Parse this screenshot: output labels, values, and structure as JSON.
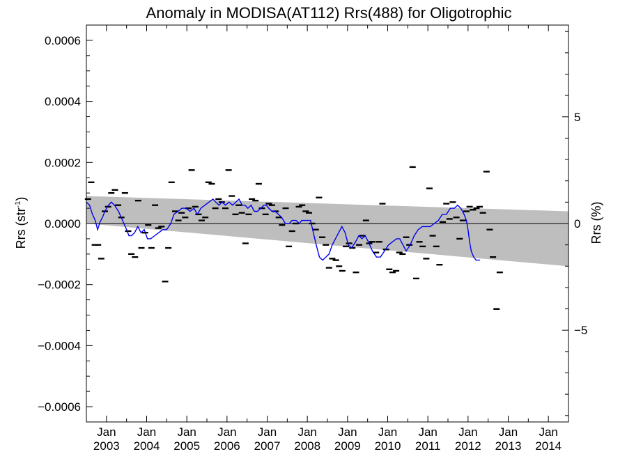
{
  "chart_data": {
    "type": "scatter",
    "title": "Anomaly in MODISA(AT112) Rrs(488) for Oligotrophic",
    "ylabel_left_main": "Rrs (str",
    "ylabel_left_sup": "-1",
    "ylabel_left_end": ")",
    "ylabel_right": "Rrs (%)",
    "xlim": [
      2002.5,
      2014.5
    ],
    "ylim": [
      -0.00065,
      0.00065
    ],
    "ylim_right": [
      -9.3,
      9.3
    ],
    "y_ticks": [
      {
        "value": 0.0006,
        "label": "0.0006"
      },
      {
        "value": 0.0004,
        "label": "0.0004"
      },
      {
        "value": 0.0002,
        "label": "0.0002"
      },
      {
        "value": 0.0,
        "label": "0.0000"
      },
      {
        "value": -0.0002,
        "label": "−0.0002"
      },
      {
        "value": -0.0004,
        "label": "−0.0004"
      },
      {
        "value": -0.0006,
        "label": "−0.0006"
      }
    ],
    "y_right_ticks": [
      {
        "value": 5,
        "label": "5"
      },
      {
        "value": 0,
        "label": "0"
      },
      {
        "value": -5,
        "label": "−5"
      }
    ],
    "x_ticks": [
      {
        "value": 2003.0,
        "month": "Jan",
        "year": "2003"
      },
      {
        "value": 2004.0,
        "month": "Jan",
        "year": "2004"
      },
      {
        "value": 2005.0,
        "month": "Jan",
        "year": "2005"
      },
      {
        "value": 2006.0,
        "month": "Jan",
        "year": "2006"
      },
      {
        "value": 2007.0,
        "month": "Jan",
        "year": "2007"
      },
      {
        "value": 2008.0,
        "month": "Jan",
        "year": "2008"
      },
      {
        "value": 2009.0,
        "month": "Jan",
        "year": "2009"
      },
      {
        "value": 2010.0,
        "month": "Jan",
        "year": "2010"
      },
      {
        "value": 2011.0,
        "month": "Jan",
        "year": "2011"
      },
      {
        "value": 2012.0,
        "month": "Jan",
        "year": "2012"
      },
      {
        "value": 2013.0,
        "month": "Jan",
        "year": "2013"
      },
      {
        "value": 2014.0,
        "month": "Jan",
        "year": "2014"
      }
    ],
    "band": {
      "color": "#bebebe",
      "upper": [
        [
          2002.5,
          9e-05
        ],
        [
          2014.5,
          4e-05
        ]
      ],
      "lower": [
        [
          2002.5,
          0.0
        ],
        [
          2014.5,
          -0.00014
        ]
      ]
    },
    "zero_line": 0,
    "series": [
      {
        "kind": "monthly",
        "color": "#000000",
        "points": [
          [
            2002.54,
            8e-05
          ],
          [
            2002.62,
            0.000135
          ],
          [
            2002.71,
            -7e-05
          ],
          [
            2002.79,
            -7e-05
          ],
          [
            2002.87,
            -0.000115
          ],
          [
            2002.96,
            4e-05
          ],
          [
            2003.04,
            5.5e-05
          ],
          [
            2003.12,
            0.0001
          ],
          [
            2003.21,
            0.00011
          ],
          [
            2003.29,
            6e-05
          ],
          [
            2003.37,
            2e-05
          ],
          [
            2003.46,
            0.0001
          ],
          [
            2003.54,
            -2.5e-05
          ],
          [
            2003.62,
            -0.0001
          ],
          [
            2003.71,
            -0.00011
          ],
          [
            2003.79,
            7.5e-05
          ],
          [
            2003.87,
            -8e-05
          ],
          [
            2003.96,
            -3e-05
          ],
          [
            2004.04,
            -5e-06
          ],
          [
            2004.12,
            -8e-05
          ],
          [
            2004.21,
            6e-05
          ],
          [
            2004.29,
            -1.5e-05
          ],
          [
            2004.37,
            -1e-05
          ],
          [
            2004.46,
            -0.00019
          ],
          [
            2004.54,
            -8e-05
          ],
          [
            2004.62,
            0.000135
          ],
          [
            2004.71,
            4e-05
          ],
          [
            2004.79,
            1e-05
          ],
          [
            2004.87,
            3.5e-05
          ],
          [
            2004.96,
            2e-05
          ],
          [
            2005.04,
            5e-05
          ],
          [
            2005.12,
            0.000175
          ],
          [
            2005.21,
            5.5e-05
          ],
          [
            2005.29,
            3e-05
          ],
          [
            2005.37,
            1e-05
          ],
          [
            2005.46,
            2e-05
          ],
          [
            2005.54,
            0.000135
          ],
          [
            2005.62,
            0.00013
          ],
          [
            2005.71,
            5e-05
          ],
          [
            2005.79,
            8e-05
          ],
          [
            2005.87,
            7e-05
          ],
          [
            2005.96,
            5e-05
          ],
          [
            2006.04,
            0.000175
          ],
          [
            2006.12,
            9e-05
          ],
          [
            2006.21,
            3e-05
          ],
          [
            2006.29,
            6e-05
          ],
          [
            2006.37,
            3.5e-05
          ],
          [
            2006.46,
            -6.5e-05
          ],
          [
            2006.54,
            3e-05
          ],
          [
            2006.62,
            8e-05
          ],
          [
            2006.71,
            7.5e-05
          ],
          [
            2006.79,
            0.00013
          ],
          [
            2006.87,
            5e-05
          ],
          [
            2006.96,
            3e-05
          ],
          [
            2007.04,
            6.5e-05
          ],
          [
            2007.12,
            6e-05
          ],
          [
            2007.21,
            4e-05
          ],
          [
            2007.29,
            2e-05
          ],
          [
            2007.37,
            -5e-06
          ],
          [
            2007.46,
            5e-05
          ],
          [
            2007.54,
            -7.5e-05
          ],
          [
            2007.62,
            -2.5e-05
          ],
          [
            2007.71,
            0.0
          ],
          [
            2007.79,
            5.5e-05
          ],
          [
            2007.87,
            6e-05
          ],
          [
            2007.96,
            4e-05
          ],
          [
            2008.04,
            3.5e-05
          ],
          [
            2008.12,
            0.0
          ],
          [
            2008.21,
            -2e-05
          ],
          [
            2008.29,
            8.5e-05
          ],
          [
            2008.37,
            -4.5e-05
          ],
          [
            2008.46,
            -7e-05
          ],
          [
            2008.54,
            -0.000145
          ],
          [
            2008.62,
            -0.000115
          ],
          [
            2008.71,
            -0.00012
          ],
          [
            2008.79,
            -0.00014
          ],
          [
            2008.87,
            -0.000155
          ],
          [
            2008.96,
            -7.5e-05
          ],
          [
            2009.04,
            -6.5e-05
          ],
          [
            2009.12,
            -8e-05
          ],
          [
            2009.21,
            -0.00016
          ],
          [
            2009.29,
            -7e-05
          ],
          [
            2009.37,
            -4e-05
          ],
          [
            2009.46,
            1e-05
          ],
          [
            2009.54,
            -6.5e-05
          ],
          [
            2009.62,
            -6e-05
          ],
          [
            2009.71,
            -9.5e-05
          ],
          [
            2009.79,
            -6e-05
          ],
          [
            2009.87,
            6.5e-05
          ],
          [
            2009.96,
            -8.5e-05
          ],
          [
            2010.04,
            -0.00015
          ],
          [
            2010.12,
            -0.00016
          ],
          [
            2010.21,
            -0.000155
          ],
          [
            2010.29,
            -9.5e-05
          ],
          [
            2010.37,
            -0.0001
          ],
          [
            2010.46,
            -4.5e-05
          ],
          [
            2010.54,
            -7e-05
          ],
          [
            2010.62,
            0.000185
          ],
          [
            2010.71,
            -0.00018
          ],
          [
            2010.79,
            -6e-05
          ],
          [
            2010.87,
            -7.5e-05
          ],
          [
            2010.96,
            -0.000115
          ],
          [
            2011.04,
            0.000115
          ],
          [
            2011.12,
            -4e-05
          ],
          [
            2011.21,
            -7.5e-05
          ],
          [
            2011.29,
            -0.000135
          ],
          [
            2011.37,
            5e-06
          ],
          [
            2011.46,
            6.5e-05
          ],
          [
            2011.54,
            1.5e-05
          ],
          [
            2011.62,
            7e-05
          ],
          [
            2011.71,
            2e-05
          ],
          [
            2011.79,
            -5e-05
          ],
          [
            2011.87,
            1e-05
          ],
          [
            2011.96,
            4e-05
          ],
          [
            2012.04,
            5.5e-05
          ],
          [
            2012.12,
            4.5e-05
          ],
          [
            2012.21,
            5e-05
          ],
          [
            2012.29,
            5.5e-05
          ],
          [
            2012.37,
            3.5e-05
          ],
          [
            2012.46,
            0.00017
          ],
          [
            2012.54,
            -2e-05
          ],
          [
            2012.62,
            -0.00011
          ],
          [
            2012.71,
            -0.00028
          ],
          [
            2012.79,
            -0.00016
          ]
        ]
      },
      {
        "kind": "running-mean",
        "color": "#0000ee",
        "points": [
          [
            2002.5,
            7e-05
          ],
          [
            2002.58,
            6e-05
          ],
          [
            2002.65,
            3e-05
          ],
          [
            2002.72,
            1e-05
          ],
          [
            2002.78,
            -2e-05
          ],
          [
            2002.84,
            5e-06
          ],
          [
            2002.9,
            2e-05
          ],
          [
            2002.96,
            4e-05
          ],
          [
            2003.05,
            6e-05
          ],
          [
            2003.12,
            7e-05
          ],
          [
            2003.2,
            6e-05
          ],
          [
            2003.3,
            4e-05
          ],
          [
            2003.4,
            1e-05
          ],
          [
            2003.5,
            -2e-05
          ],
          [
            2003.56,
            -4e-05
          ],
          [
            2003.62,
            -4e-05
          ],
          [
            2003.7,
            -3e-05
          ],
          [
            2003.78,
            -1e-05
          ],
          [
            2003.86,
            -3e-05
          ],
          [
            2003.94,
            -2e-05
          ],
          [
            2004.02,
            -5e-05
          ],
          [
            2004.1,
            -5e-05
          ],
          [
            2004.2,
            -4e-05
          ],
          [
            2004.3,
            -3e-05
          ],
          [
            2004.4,
            -2e-05
          ],
          [
            2004.5,
            -2e-05
          ],
          [
            2004.6,
            0.0
          ],
          [
            2004.68,
            3e-05
          ],
          [
            2004.78,
            4e-05
          ],
          [
            2004.88,
            5e-05
          ],
          [
            2004.98,
            5e-05
          ],
          [
            2005.08,
            4e-05
          ],
          [
            2005.18,
            5e-05
          ],
          [
            2005.26,
            3e-05
          ],
          [
            2005.35,
            5e-05
          ],
          [
            2005.45,
            6e-05
          ],
          [
            2005.55,
            7e-05
          ],
          [
            2005.65,
            8e-05
          ],
          [
            2005.72,
            7e-05
          ],
          [
            2005.8,
            6e-05
          ],
          [
            2005.88,
            7e-05
          ],
          [
            2005.96,
            6e-05
          ],
          [
            2006.05,
            7e-05
          ],
          [
            2006.14,
            6e-05
          ],
          [
            2006.22,
            7e-05
          ],
          [
            2006.3,
            8e-05
          ],
          [
            2006.38,
            6e-05
          ],
          [
            2006.45,
            6e-05
          ],
          [
            2006.52,
            5e-05
          ],
          [
            2006.6,
            6e-05
          ],
          [
            2006.68,
            4e-05
          ],
          [
            2006.76,
            4e-05
          ],
          [
            2006.84,
            5e-05
          ],
          [
            2006.92,
            6e-05
          ],
          [
            2006.98,
            6e-05
          ],
          [
            2007.04,
            5e-05
          ],
          [
            2007.12,
            4e-05
          ],
          [
            2007.2,
            4e-05
          ],
          [
            2007.28,
            3e-05
          ],
          [
            2007.36,
            2e-05
          ],
          [
            2007.45,
            0.0
          ],
          [
            2007.55,
            0.0
          ],
          [
            2007.62,
            1e-05
          ],
          [
            2007.72,
            1e-05
          ],
          [
            2007.8,
            0.0
          ],
          [
            2007.86,
            1e-05
          ],
          [
            2007.92,
            1e-05
          ],
          [
            2008.0,
            1e-05
          ],
          [
            2008.08,
            1e-05
          ],
          [
            2008.15,
            -3e-05
          ],
          [
            2008.22,
            -7e-05
          ],
          [
            2008.3,
            -0.00011
          ],
          [
            2008.38,
            -0.00012
          ],
          [
            2008.46,
            -0.00011
          ],
          [
            2008.54,
            -0.0001
          ],
          [
            2008.62,
            -7e-05
          ],
          [
            2008.7,
            -5e-05
          ],
          [
            2008.78,
            -3e-05
          ],
          [
            2008.86,
            -1e-05
          ],
          [
            2008.94,
            -3e-05
          ],
          [
            2009.02,
            -7e-05
          ],
          [
            2009.1,
            -8e-05
          ],
          [
            2009.2,
            -6e-05
          ],
          [
            2009.28,
            -4e-05
          ],
          [
            2009.36,
            -5e-05
          ],
          [
            2009.44,
            -4e-05
          ],
          [
            2009.52,
            -6e-05
          ],
          [
            2009.62,
            -9e-05
          ],
          [
            2009.72,
            -0.00011
          ],
          [
            2009.82,
            -0.00011
          ],
          [
            2009.92,
            -9e-05
          ],
          [
            2010.02,
            -7e-05
          ],
          [
            2010.12,
            -6e-05
          ],
          [
            2010.22,
            -5e-05
          ],
          [
            2010.3,
            -5e-05
          ],
          [
            2010.38,
            -7e-05
          ],
          [
            2010.46,
            -9e-05
          ],
          [
            2010.56,
            -7e-05
          ],
          [
            2010.66,
            -4e-05
          ],
          [
            2010.76,
            -2e-05
          ],
          [
            2010.86,
            -1e-05
          ],
          [
            2010.96,
            -1e-05
          ],
          [
            2011.06,
            -1e-05
          ],
          [
            2011.16,
            0.0
          ],
          [
            2011.26,
            1e-05
          ],
          [
            2011.36,
            3e-05
          ],
          [
            2011.46,
            3e-05
          ],
          [
            2011.56,
            5e-05
          ],
          [
            2011.66,
            5e-05
          ],
          [
            2011.74,
            6e-05
          ],
          [
            2011.82,
            5e-05
          ],
          [
            2011.9,
            3e-05
          ],
          [
            2011.96,
            1e-05
          ],
          [
            2012.0,
            -2e-05
          ],
          [
            2012.04,
            -6e-05
          ],
          [
            2012.08,
            -9e-05
          ],
          [
            2012.14,
            -0.00011
          ],
          [
            2012.2,
            -0.00012
          ],
          [
            2012.26,
            -0.00012
          ],
          [
            2012.3,
            -0.00012
          ]
        ]
      }
    ]
  }
}
